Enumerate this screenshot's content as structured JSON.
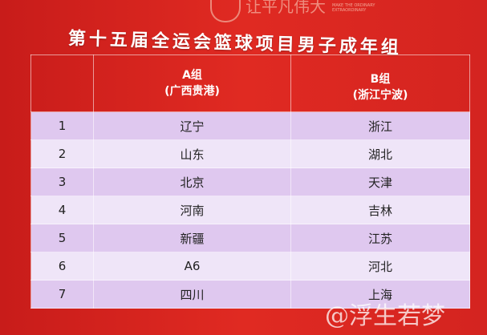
{
  "logo": {
    "slogan": "让平凡伟大",
    "slogan_en": "MAKE THE ORDINARY EXTRAORDINARY"
  },
  "title": "第十五届全运会篮球项目男子成年组",
  "table": {
    "headers": [
      {
        "group": "A组",
        "venue": "(广西贵港)"
      },
      {
        "group": "B组",
        "venue": "(浙江宁波)"
      }
    ],
    "rows": [
      {
        "rank": "1",
        "a": "辽宁",
        "b": "浙江"
      },
      {
        "rank": "2",
        "a": "山东",
        "b": "湖北"
      },
      {
        "rank": "3",
        "a": "北京",
        "b": "天津"
      },
      {
        "rank": "4",
        "a": "河南",
        "b": "吉林"
      },
      {
        "rank": "5",
        "a": "新疆",
        "b": "江苏"
      },
      {
        "rank": "6",
        "a": "A6",
        "b": "河北"
      },
      {
        "rank": "7",
        "a": "四川",
        "b": "上海"
      }
    ]
  },
  "watermark": "@浮生若梦"
}
